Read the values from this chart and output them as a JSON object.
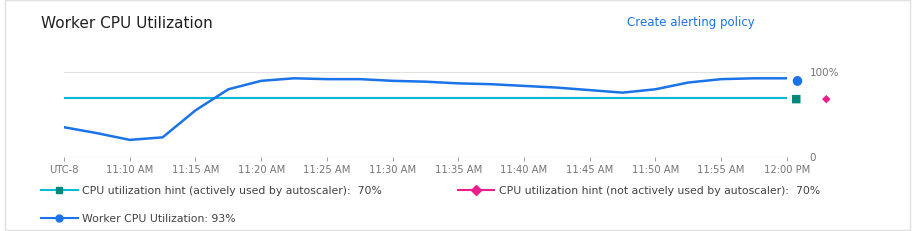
{
  "title": "Worker CPU Utilization",
  "title_fontsize": 11,
  "background_color": "#ffffff",
  "plot_bg_color": "#ffffff",
  "tick_labels": [
    "UTC-8",
    "11:10 AM",
    "11:15 AM",
    "11:20 AM",
    "11:25 AM",
    "11:30 AM",
    "11:35 AM",
    "11:40 AM",
    "11:45 AM",
    "11:50 AM",
    "11:55 AM",
    "12:00 PM"
  ],
  "cpu_hint_active_value": 70,
  "cpu_hint_active_color": "#00bcd4",
  "cpu_hint_active_marker_color": "#00897b",
  "cpu_hint_inactive_value": 70,
  "cpu_hint_inactive_color": "#e91e8c",
  "cpu_hint_inactive_marker_color": "#e91e8c",
  "worker_cpu_color": "#1a73e8",
  "worker_cpu_marker_color": "#1a73e8",
  "worker_cpu_x": [
    0,
    0.5,
    1,
    1.5,
    2,
    2.5,
    3,
    3.5,
    4,
    4.5,
    5,
    5.5,
    6,
    6.5,
    7,
    7.5,
    8,
    8.5,
    9,
    9.5,
    10,
    10.5,
    11
  ],
  "worker_cpu_y": [
    35,
    28,
    20,
    23,
    55,
    80,
    90,
    93,
    92,
    92,
    90,
    89,
    87,
    86,
    84,
    82,
    79,
    76,
    80,
    88,
    92,
    93,
    93
  ],
  "ylim_min": 0,
  "ylim_max": 110,
  "right_label_100": "100%",
  "right_label_0": "0",
  "legend_label_active": "CPU utilization hint (actively used by autoscaler):  70%",
  "legend_label_inactive": "CPU utilization hint (not actively used by autoscaler):  70%",
  "legend_label_worker": "Worker CPU Utilization: 93%",
  "alert_link_text": "Create alerting policy",
  "alert_link_color": "#1a73e8",
  "grid_color": "#e0e0e0",
  "axis_color": "#bdbdbd",
  "tick_color": "#757575",
  "border_color": "#e0e0e0"
}
